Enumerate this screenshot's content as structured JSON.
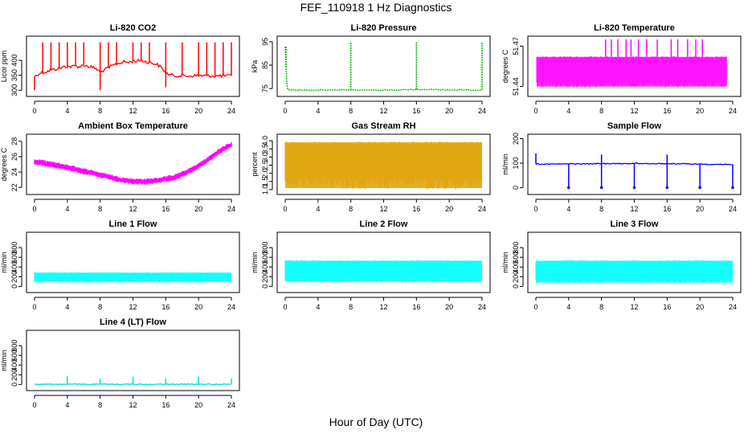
{
  "figure": {
    "title": "FEF_110918  1 Hz Diagnostics",
    "xlabel": "Hour of Day (UTC)"
  },
  "chart_data": [
    {
      "type": "line",
      "title": "Li-820 CO2",
      "ylabel": "Licor ppm",
      "color": "#ff0000",
      "xlim": [
        0,
        24
      ],
      "ylim": [
        290,
        470
      ],
      "yticks": [
        300,
        350,
        400
      ],
      "ytick_labels": [
        "300",
        "350",
        "400"
      ],
      "xticks": [
        0,
        4,
        8,
        12,
        16,
        20,
        24
      ],
      "xtick_labels": [
        "0",
        "4",
        "8",
        "12",
        "16",
        "20",
        "24"
      ],
      "series": [
        {
          "x": [
            0,
            0.5,
            1,
            1.5,
            2,
            2.5,
            3,
            3.5,
            4,
            4.5,
            5,
            5.5,
            6,
            6.5,
            7,
            7.5,
            8,
            8.5,
            9,
            9.5,
            10,
            10.5,
            11,
            11.5,
            12,
            12.5,
            13,
            13.5,
            14,
            14.5,
            15,
            15.5,
            16,
            16.5,
            17,
            18,
            19,
            20,
            21,
            22,
            23,
            24
          ],
          "y": [
            345,
            355,
            360,
            362,
            368,
            370,
            373,
            378,
            380,
            378,
            382,
            378,
            385,
            380,
            377,
            372,
            360,
            368,
            375,
            382,
            388,
            392,
            395,
            393,
            398,
            397,
            400,
            395,
            393,
            390,
            385,
            375,
            358,
            352,
            349,
            348,
            348,
            349,
            348,
            348,
            348,
            348
          ]
        }
      ],
      "spikes": [
        {
          "x": 0.0,
          "y": 300
        },
        {
          "x": 1.0,
          "y": 460
        },
        {
          "x": 2.0,
          "y": 460
        },
        {
          "x": 3.0,
          "y": 460
        },
        {
          "x": 4.0,
          "y": 460
        },
        {
          "x": 5.0,
          "y": 460
        },
        {
          "x": 6.0,
          "y": 460
        },
        {
          "x": 8.0,
          "y": 460
        },
        {
          "x": 8.0,
          "y": 300
        },
        {
          "x": 9.0,
          "y": 460
        },
        {
          "x": 10.0,
          "y": 460
        },
        {
          "x": 12.0,
          "y": 460
        },
        {
          "x": 13.0,
          "y": 460
        },
        {
          "x": 14.0,
          "y": 460
        },
        {
          "x": 16.0,
          "y": 460
        },
        {
          "x": 16.0,
          "y": 310
        },
        {
          "x": 18.0,
          "y": 460
        },
        {
          "x": 20.0,
          "y": 460
        },
        {
          "x": 21.0,
          "y": 460
        },
        {
          "x": 22.0,
          "y": 460
        },
        {
          "x": 23.0,
          "y": 460
        },
        {
          "x": 24.0,
          "y": 460
        }
      ]
    },
    {
      "type": "line",
      "title": "Li-820 Pressure",
      "ylabel": "kPa",
      "color": "#00b000",
      "dashed": true,
      "xlim": [
        0,
        24
      ],
      "ylim": [
        73,
        96
      ],
      "yticks": [
        75,
        85,
        95
      ],
      "ytick_labels": [
        "75",
        "85",
        "95"
      ],
      "xticks": [
        0,
        4,
        8,
        12,
        16,
        20,
        24
      ],
      "xtick_labels": [
        "0",
        "4",
        "8",
        "12",
        "16",
        "20",
        "24"
      ],
      "series": [
        {
          "x": [
            0,
            0.2,
            0.4,
            2,
            4,
            6,
            8,
            10,
            12,
            14,
            16,
            18,
            20,
            22,
            24
          ],
          "y": [
            93,
            75,
            74.4,
            74.3,
            74.3,
            74.4,
            74.4,
            74.4,
            74.4,
            74.4,
            74.5,
            74.6,
            74.4,
            74.4,
            74.4
          ]
        }
      ],
      "spikes": [
        {
          "x": 0.1,
          "y": 93
        },
        {
          "x": 8.0,
          "y": 95
        },
        {
          "x": 16.0,
          "y": 95
        },
        {
          "x": 24.0,
          "y": 95
        }
      ]
    },
    {
      "type": "line",
      "title": "Li-820 Temperature",
      "ylabel": "degrees C",
      "color": "#ff00ff",
      "xlim": [
        0,
        24
      ],
      "ylim": [
        51.435,
        51.475
      ],
      "yticks": [
        51.44,
        51.47
      ],
      "ytick_labels": [
        "51.44",
        "51.47"
      ],
      "xticks": [
        0,
        4,
        8,
        12,
        16,
        20,
        24
      ],
      "xtick_labels": [
        "0",
        "4",
        "8",
        "12",
        "16",
        "20",
        "24"
      ],
      "band": {
        "x_start": 0.1,
        "x_end": 23.3,
        "low": 51.44,
        "high": 51.462
      },
      "spikes": [
        {
          "x": 8.5,
          "y": 51.475
        },
        {
          "x": 9.2,
          "y": 51.475
        },
        {
          "x": 10.0,
          "y": 51.475
        },
        {
          "x": 11.0,
          "y": 51.475
        },
        {
          "x": 11.6,
          "y": 51.475
        },
        {
          "x": 12.5,
          "y": 51.475
        },
        {
          "x": 13.5,
          "y": 51.475
        },
        {
          "x": 14.8,
          "y": 51.475
        },
        {
          "x": 16.5,
          "y": 51.475
        },
        {
          "x": 17.3,
          "y": 51.475
        },
        {
          "x": 18.5,
          "y": 51.475
        },
        {
          "x": 19.5,
          "y": 51.475
        },
        {
          "x": 20.3,
          "y": 51.475
        }
      ]
    },
    {
      "type": "line",
      "title": "Ambient Box Temperature",
      "ylabel": "degrees C",
      "color": "#ff00ff",
      "xlim": [
        0,
        24
      ],
      "ylim": [
        21.5,
        28.5
      ],
      "yticks": [
        22,
        24,
        26,
        28
      ],
      "ytick_labels": [
        "22",
        "24",
        "26",
        "28"
      ],
      "xticks": [
        0,
        4,
        8,
        12,
        16,
        20,
        24
      ],
      "xtick_labels": [
        "0",
        "4",
        "8",
        "12",
        "16",
        "20",
        "24"
      ],
      "series": [
        {
          "x": [
            0,
            1,
            2,
            3,
            4,
            5,
            6,
            7,
            8,
            9,
            10,
            11,
            12,
            13,
            14,
            15,
            16,
            17,
            18,
            19,
            20,
            21,
            22,
            23,
            24
          ],
          "y": [
            25.3,
            25.2,
            25.0,
            24.8,
            24.6,
            24.4,
            24.1,
            23.9,
            23.6,
            23.4,
            23.1,
            22.9,
            22.8,
            22.75,
            22.8,
            22.9,
            23.1,
            23.3,
            23.7,
            24.2,
            24.8,
            25.5,
            26.3,
            27.0,
            27.5
          ]
        }
      ],
      "noise": 0.35
    },
    {
      "type": "area",
      "title": "Gas Stream RH",
      "ylabel": "percent",
      "color": "#e0a000",
      "xlim": [
        0,
        24
      ],
      "ylim": [
        0.9,
        4.2
      ],
      "yticks": [
        1.0,
        1.5,
        2.0,
        2.5,
        3.0,
        3.5,
        4.0
      ],
      "ytick_labels": [
        "1.0",
        "1.5",
        "2.0",
        "2.5",
        "3.0",
        "3.5",
        "4.0"
      ],
      "xticks": [
        0,
        4,
        8,
        12,
        16,
        20,
        24
      ],
      "xtick_labels": [
        "0",
        "4",
        "8",
        "12",
        "16",
        "20",
        "24"
      ],
      "band": {
        "x_start": 0,
        "x_end": 24,
        "low": 1.1,
        "high": 3.9
      }
    },
    {
      "type": "line",
      "title": "Sample Flow",
      "ylabel": "ml/min",
      "color": "#0000ff",
      "xlim": [
        0,
        24
      ],
      "ylim": [
        -15,
        205
      ],
      "yticks": [
        0,
        100,
        200
      ],
      "ytick_labels": [
        "0",
        "100",
        "200"
      ],
      "xticks": [
        0,
        4,
        8,
        12,
        16,
        20,
        24
      ],
      "xtick_labels": [
        "0",
        "4",
        "8",
        "12",
        "16",
        "20",
        "24"
      ],
      "series": [
        {
          "x": [
            0,
            2,
            4,
            6,
            8,
            10,
            12,
            14,
            16,
            18,
            20,
            22,
            24
          ],
          "y": [
            97,
            96,
            97,
            97,
            98,
            98,
            99,
            98,
            98,
            97,
            96,
            95,
            95
          ]
        }
      ],
      "spikes": [
        {
          "x": 0.0,
          "y": 140
        },
        {
          "x": 4.0,
          "y": 0
        },
        {
          "x": 8.0,
          "y": 135
        },
        {
          "x": 8.0,
          "y": 0
        },
        {
          "x": 12.0,
          "y": 0
        },
        {
          "x": 16.0,
          "y": 135
        },
        {
          "x": 16.0,
          "y": 0
        },
        {
          "x": 20.0,
          "y": 0
        },
        {
          "x": 24.0,
          "y": 0
        }
      ]
    },
    {
      "type": "area",
      "title": "Line 1 Flow",
      "ylabel": "ml/min",
      "color": "#00ffff",
      "xlim": [
        0,
        24
      ],
      "ylim": [
        -60,
        1050
      ],
      "yticks": [
        0,
        200,
        400,
        600,
        800
      ],
      "ytick_labels": [
        "0",
        "200",
        "400",
        "600",
        "800"
      ],
      "xticks": [
        0,
        4,
        8,
        12,
        16,
        20,
        24
      ],
      "xtick_labels": [
        "0",
        "4",
        "8",
        "12",
        "16",
        "20",
        "24"
      ],
      "band": {
        "x_start": 0,
        "x_end": 24,
        "low": 100,
        "high": 280
      }
    },
    {
      "type": "area",
      "title": "Line 2 Flow",
      "ylabel": "ml/min",
      "color": "#00ffff",
      "xlim": [
        0,
        24
      ],
      "ylim": [
        -60,
        1050
      ],
      "yticks": [
        0,
        200,
        400,
        600,
        800
      ],
      "ytick_labels": [
        "0",
        "200",
        "400",
        "600",
        "800"
      ],
      "xticks": [
        0,
        4,
        8,
        12,
        16,
        20,
        24
      ],
      "xtick_labels": [
        "0",
        "4",
        "8",
        "12",
        "16",
        "20",
        "24"
      ],
      "band": {
        "x_start": 0,
        "x_end": 24,
        "low": 100,
        "high": 530
      }
    },
    {
      "type": "area",
      "title": "Line 3 Flow",
      "ylabel": "ml/min",
      "color": "#00ffff",
      "xlim": [
        0,
        24
      ],
      "ylim": [
        -60,
        1050
      ],
      "yticks": [
        0,
        200,
        400,
        600,
        800
      ],
      "ytick_labels": [
        "0",
        "200",
        "400",
        "600",
        "800"
      ],
      "xticks": [
        0,
        4,
        8,
        12,
        16,
        20,
        24
      ],
      "xtick_labels": [
        "0",
        "4",
        "8",
        "12",
        "16",
        "20",
        "24"
      ],
      "band": {
        "x_start": 0,
        "x_end": 24,
        "low": 80,
        "high": 530
      }
    },
    {
      "type": "line",
      "title": "Line 4 (LT) Flow",
      "ylabel": "ml/min",
      "color": "#00e0e0",
      "xlim": [
        0,
        24
      ],
      "ylim": [
        -60,
        1050
      ],
      "yticks": [
        0,
        200,
        400,
        600,
        800
      ],
      "ytick_labels": [
        "0",
        "200",
        "400",
        "600",
        "800"
      ],
      "xticks": [
        0,
        4,
        8,
        12,
        16,
        20,
        24
      ],
      "xtick_labels": [
        "0",
        "4",
        "8",
        "12",
        "16",
        "20",
        "24"
      ],
      "series": [
        {
          "x": [
            0,
            4,
            8,
            12,
            16,
            20,
            24
          ],
          "y": [
            5,
            5,
            5,
            5,
            5,
            5,
            5
          ]
        }
      ],
      "spikes": [
        {
          "x": 4.0,
          "y": 170
        },
        {
          "x": 8.0,
          "y": 120
        },
        {
          "x": 12.0,
          "y": 160
        },
        {
          "x": 16.0,
          "y": 120
        },
        {
          "x": 20.0,
          "y": 160
        },
        {
          "x": 24.0,
          "y": 120
        }
      ]
    }
  ]
}
